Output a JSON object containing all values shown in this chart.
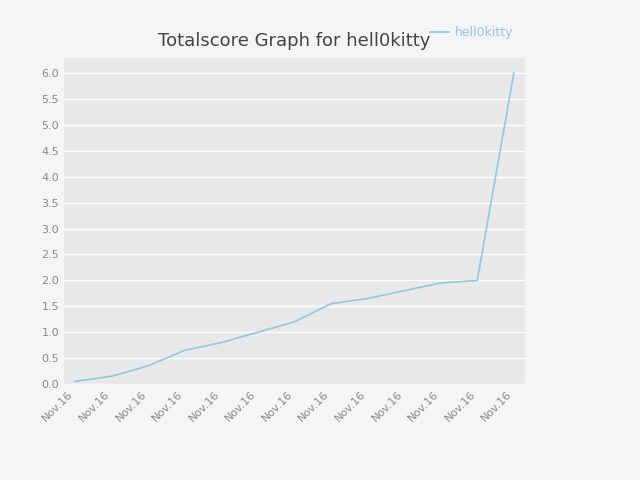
{
  "title": "Totalscore Graph for hell0kitty",
  "legend_label": "hell0kitty",
  "x_labels": [
    "Nov.16",
    "Nov.16",
    "Nov.16",
    "Nov.16",
    "Nov.16",
    "Nov.16",
    "Nov.16",
    "Nov.16",
    "Nov.16",
    "Nov.16",
    "Nov.16",
    "Nov.16",
    "Nov.16"
  ],
  "y_values": [
    0.05,
    0.15,
    0.35,
    0.65,
    0.8,
    1.0,
    1.2,
    1.55,
    1.65,
    1.8,
    1.95,
    2.0,
    6.0
  ],
  "ylim": [
    0.0,
    6.3
  ],
  "yticks": [
    0.0,
    0.5,
    1.0,
    1.5,
    2.0,
    2.5,
    3.0,
    3.5,
    4.0,
    4.5,
    5.0,
    5.5,
    6.0
  ],
  "line_color": "#90c8e0",
  "background_color": "#e8e8e8",
  "fig_background": "#f5f5f5",
  "title_fontsize": 13,
  "tick_label_fontsize": 8,
  "legend_fontsize": 9,
  "grid_color": "#ffffff",
  "tick_color": "#888888",
  "title_color": "#444444",
  "legend_color": "#90c8e0"
}
